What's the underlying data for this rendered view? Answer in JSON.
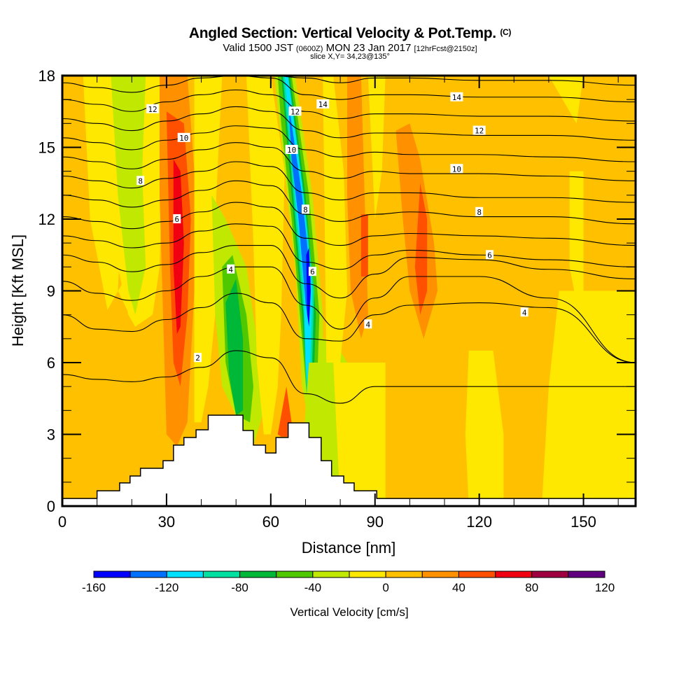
{
  "header": {
    "title": "Angled Section: Vertical Velocity & Pot.Temp.",
    "title_suffix": "(C)",
    "valid_prefix": "Valid 1500 JST",
    "valid_utc": "(0600Z)",
    "valid_date": "MON 23 Jan 2017",
    "forecast": "[12hrFcst@2150z]",
    "slice": "slice X,Y= 34,23@135°"
  },
  "chart_data": {
    "type": "heatmap",
    "title": "Angled Section: Vertical Velocity & Pot.Temp. (C)",
    "subtitle": "Valid 1500 JST (0600Z) MON 23 Jan 2017 [12hrFcst@2150z] slice X,Y= 34,23@135°",
    "xlabel": "Distance [nm]",
    "ylabel": "Height [Kft MSL]",
    "xlim": [
      0,
      165
    ],
    "ylim": [
      0,
      18
    ],
    "xticks": [
      0,
      30,
      60,
      90,
      120,
      150
    ],
    "xminor_step": 10,
    "yticks": [
      0,
      3,
      6,
      9,
      12,
      15,
      18
    ],
    "yminor_step": 1,
    "colorbar": {
      "label": "Vertical Velocity [cm/s]",
      "placement": "bottom",
      "boundaries": [
        -160,
        -140,
        -120,
        -100,
        -80,
        -60,
        -40,
        -20,
        0,
        20,
        40,
        60,
        80,
        100,
        120
      ],
      "tick_labels": [
        "-160",
        "-120",
        "-80",
        "-40",
        "0",
        "40",
        "80",
        "120"
      ],
      "colors": [
        "#0000ff",
        "#0070ff",
        "#00e0ff",
        "#00e0a0",
        "#00b838",
        "#50c800",
        "#c0e800",
        "#ffe800",
        "#ffc000",
        "#ff9000",
        "#ff5000",
        "#f00010",
        "#a00040",
        "#600080"
      ]
    },
    "velocity_features": [
      {
        "name": "updraft-west",
        "x_center": 33,
        "z_range": [
          7.5,
          16.5
        ],
        "max_class": "60-80",
        "color": "#f00010"
      },
      {
        "name": "downdraft-west",
        "x_center": 18,
        "z_range": [
          8,
          18
        ],
        "max_class": "-40 to -20"
      },
      {
        "name": "downdraft-lee",
        "x_center": 51,
        "z_range": [
          3.5,
          10
        ],
        "max_class": "-80 to -60"
      },
      {
        "name": "downdraft-core",
        "x_center": 70,
        "z_range": [
          3,
          18
        ],
        "max_class": "-160 to -140",
        "color": "#0000ff"
      },
      {
        "name": "updraft-east-1",
        "x_center": 90,
        "z_range": [
          9,
          12
        ],
        "max_class": "40-60"
      },
      {
        "name": "updraft-east-2",
        "x_center": 104,
        "z_range": [
          7,
          14
        ],
        "max_class": "40-60"
      }
    ],
    "terrain": {
      "x": [
        0,
        10,
        10,
        16.5,
        16.5,
        19.5,
        19.5,
        22.5,
        22.5,
        29,
        29,
        32,
        32,
        35,
        35,
        38.5,
        38.5,
        42,
        42,
        52,
        52,
        55,
        55,
        58.5,
        58.5,
        61.5,
        61.5,
        65,
        65,
        71,
        71,
        74.5,
        74.5,
        77.5,
        77.5,
        81,
        81,
        84,
        84,
        90.5,
        90.5,
        165
      ],
      "z": [
        0.32,
        0.32,
        0.64,
        0.64,
        0.97,
        0.97,
        1.26,
        1.26,
        1.58,
        1.58,
        1.9,
        1.9,
        2.55,
        2.55,
        2.87,
        2.87,
        3.19,
        3.19,
        3.8,
        3.8,
        3.16,
        3.16,
        2.55,
        2.55,
        2.22,
        2.22,
        2.87,
        2.87,
        3.48,
        3.48,
        2.87,
        2.87,
        1.9,
        1.9,
        1.26,
        1.26,
        0.97,
        0.97,
        0.64,
        0.64,
        0.32,
        0.32
      ]
    },
    "contour_labels": [
      {
        "text": "12",
        "x": 26,
        "z": 16.6
      },
      {
        "text": "10",
        "x": 35,
        "z": 15.4
      },
      {
        "text": "8",
        "x": 22.5,
        "z": 13.6
      },
      {
        "text": "6",
        "x": 33,
        "z": 12.0
      },
      {
        "text": "4",
        "x": 48.5,
        "z": 9.9
      },
      {
        "text": "2",
        "x": 39,
        "z": 6.2
      },
      {
        "text": "12",
        "x": 67,
        "z": 16.5
      },
      {
        "text": "14",
        "x": 75,
        "z": 16.8
      },
      {
        "text": "10",
        "x": 66,
        "z": 14.9
      },
      {
        "text": "8",
        "x": 70,
        "z": 12.4
      },
      {
        "text": "6",
        "x": 72,
        "z": 9.8
      },
      {
        "text": "4",
        "x": 88,
        "z": 7.6
      },
      {
        "text": "14",
        "x": 113.5,
        "z": 17.1
      },
      {
        "text": "12",
        "x": 120,
        "z": 15.7
      },
      {
        "text": "10",
        "x": 113.5,
        "z": 14.1
      },
      {
        "text": "8",
        "x": 120,
        "z": 12.3
      },
      {
        "text": "6",
        "x": 123,
        "z": 10.5
      },
      {
        "text": "4",
        "x": 133,
        "z": 8.1
      }
    ],
    "isentropes_C": [
      2,
      3,
      4,
      5,
      6,
      7,
      8,
      9,
      10,
      11,
      12,
      13,
      14,
      15
    ],
    "isentrope_levels_z": [
      {
        "theta": 2,
        "z": [
          5.5,
          5.3,
          5.2,
          5.4,
          5.8,
          6.5,
          6.2,
          4.7,
          4.3,
          5.0,
          5.0,
          5.0,
          5.0,
          5.0
        ]
      },
      {
        "theta": 3,
        "z": [
          8.0,
          7.4,
          7.3,
          7.8,
          8.3,
          8.9,
          8.5,
          7.0,
          6.9,
          8.0,
          8.4,
          8.5,
          8.3,
          6.0
        ]
      },
      {
        "theta": 4,
        "z": [
          9.4,
          8.9,
          8.6,
          9.0,
          9.6,
          10.0,
          10.0,
          8.4,
          7.4,
          8.7,
          9.6,
          9.6,
          8.7,
          6.0
        ]
      },
      {
        "theta": 5,
        "z": [
          10.5,
          10.2,
          9.8,
          10.1,
          10.6,
          10.9,
          10.9,
          9.3,
          8.7,
          9.7,
          10.4,
          10.3,
          9.9,
          9.5
        ]
      },
      {
        "theta": 6,
        "z": [
          11.3,
          11.1,
          10.8,
          11.0,
          11.5,
          11.8,
          11.7,
          10.2,
          9.9,
          10.5,
          10.7,
          10.5,
          10.3,
          10.0
        ]
      },
      {
        "theta": 7,
        "z": [
          12.1,
          11.9,
          11.6,
          11.9,
          12.3,
          12.7,
          12.5,
          11.2,
          10.9,
          11.3,
          11.4,
          11.3,
          11.2,
          10.9
        ]
      },
      {
        "theta": 8,
        "z": [
          13.0,
          12.8,
          12.5,
          12.8,
          13.2,
          13.6,
          13.4,
          12.2,
          11.9,
          12.2,
          12.3,
          12.1,
          12.1,
          11.8
        ]
      },
      {
        "theta": 9,
        "z": [
          13.8,
          13.6,
          13.3,
          13.7,
          14.0,
          14.4,
          14.2,
          13.1,
          12.8,
          13.1,
          13.1,
          12.9,
          12.9,
          12.7
        ]
      },
      {
        "theta": 10,
        "z": [
          14.6,
          14.4,
          14.1,
          14.5,
          14.9,
          15.2,
          15.0,
          14.0,
          13.7,
          14.0,
          13.9,
          13.9,
          13.8,
          13.6
        ]
      },
      {
        "theta": 11,
        "z": [
          15.4,
          15.2,
          14.9,
          15.3,
          15.6,
          15.9,
          15.8,
          14.9,
          14.6,
          14.8,
          14.7,
          14.7,
          14.6,
          14.4
        ]
      },
      {
        "theta": 12,
        "z": [
          16.2,
          16.0,
          15.7,
          16.1,
          16.4,
          16.7,
          16.5,
          15.7,
          15.4,
          15.6,
          15.6,
          15.5,
          15.5,
          15.3
        ]
      },
      {
        "theta": 13,
        "z": [
          17.0,
          16.8,
          16.5,
          16.9,
          17.2,
          17.4,
          17.2,
          16.5,
          16.2,
          16.4,
          16.4,
          16.3,
          16.3,
          16.1
        ]
      },
      {
        "theta": 14,
        "z": [
          17.7,
          17.5,
          17.3,
          17.6,
          17.9,
          18.0,
          17.9,
          17.2,
          17.0,
          17.2,
          17.2,
          17.1,
          17.1,
          16.9
        ]
      },
      {
        "theta": 15,
        "z": [
          18.0,
          18.0,
          18.0,
          18.0,
          18.0,
          18.0,
          18.0,
          17.9,
          17.7,
          17.9,
          17.9,
          17.8,
          17.8,
          17.6
        ]
      }
    ],
    "isentrope_x": [
      0,
      10,
      20,
      30,
      40,
      50,
      60,
      70,
      80,
      90,
      100,
      120,
      140,
      165
    ]
  }
}
